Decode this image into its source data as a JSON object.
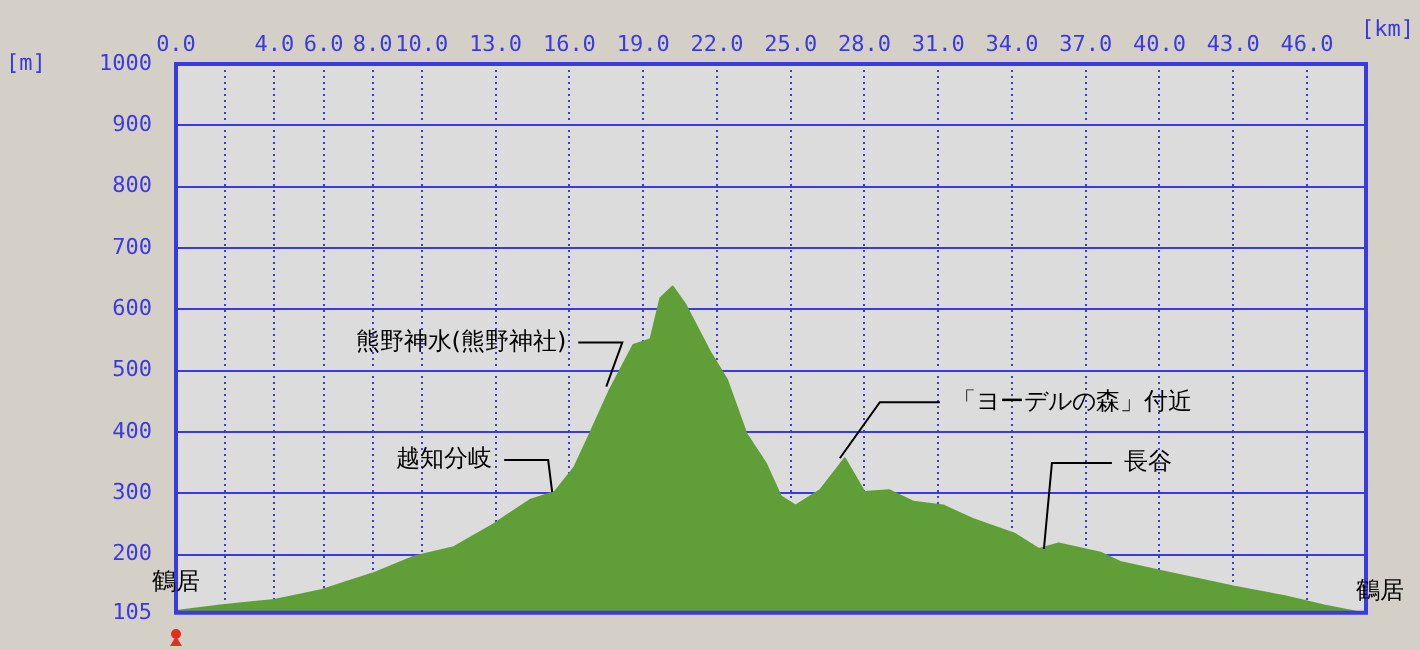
{
  "chart_data": {
    "type": "area",
    "xlabel": "[km]",
    "ylabel": "[m]",
    "x": [
      0,
      1.8,
      4.0,
      5.9,
      8.0,
      9.7,
      11.3,
      12.9,
      14.4,
      15.4,
      16.2,
      16.8,
      17.6,
      18.6,
      19.3,
      19.7,
      20.2,
      20.7,
      21.7,
      22.4,
      23.2,
      24.0,
      24.6,
      25.2,
      26.2,
      27.2,
      28.0,
      29.0,
      30.0,
      31.2,
      32.4,
      34.1,
      35.1,
      35.9,
      37.6,
      38.4,
      40.2,
      43.0,
      45.1,
      46.7,
      48.1,
      48.4
    ],
    "series": [
      {
        "color": "#609f38",
        "values": [
          108,
          117,
          126,
          142,
          169,
          197,
          212,
          249,
          289,
          302,
          342,
          394,
          465,
          542,
          551,
          618,
          637,
          609,
          532,
          486,
          397,
          348,
          295,
          280,
          305,
          357,
          302,
          305,
          286,
          280,
          258,
          234,
          209,
          218,
          203,
          188,
          172,
          148,
          132,
          117,
          106,
          106
        ]
      }
    ],
    "xlim": [
      0,
      48.4
    ],
    "xticks": [
      {
        "value": 0,
        "label": "0.0"
      },
      {
        "value": 2,
        "label": null
      },
      {
        "value": 4,
        "label": "4.0"
      },
      {
        "value": 6,
        "label": "6.0"
      },
      {
        "value": 8,
        "label": "8.0"
      },
      {
        "value": 10,
        "label": "10.0"
      },
      {
        "value": 13,
        "label": "13.0"
      },
      {
        "value": 16,
        "label": "16.0"
      },
      {
        "value": 19,
        "label": "19.0"
      },
      {
        "value": 22,
        "label": "22.0"
      },
      {
        "value": 25,
        "label": "25.0"
      },
      {
        "value": 28,
        "label": "28.0"
      },
      {
        "value": 31,
        "label": "31.0"
      },
      {
        "value": 34,
        "label": "34.0"
      },
      {
        "value": 37,
        "label": "37.0"
      },
      {
        "value": 40,
        "label": "40.0"
      },
      {
        "value": 43,
        "label": "43.0"
      },
      {
        "value": 46,
        "label": "46.0"
      }
    ],
    "ylim": [
      105,
      1000
    ],
    "yticks": [
      105,
      200,
      300,
      400,
      500,
      600,
      700,
      800,
      900,
      1000
    ],
    "grid": true,
    "legend": false,
    "marker": "none",
    "annotations": [
      {
        "text": "熊野神水(熊野神社)",
        "x": 17.5,
        "y": 474
      },
      {
        "text": "越知分岐",
        "x": 15.3,
        "y": 302
      },
      {
        "text": "「ヨーデルの森」付近",
        "x": 27.0,
        "y": 357
      },
      {
        "text": "長谷",
        "x": 35.3,
        "y": 209
      },
      {
        "text": "鶴居",
        "x": 0,
        "y": 108
      },
      {
        "text": "鶴居",
        "x": 48.4,
        "y": 106
      }
    ]
  }
}
